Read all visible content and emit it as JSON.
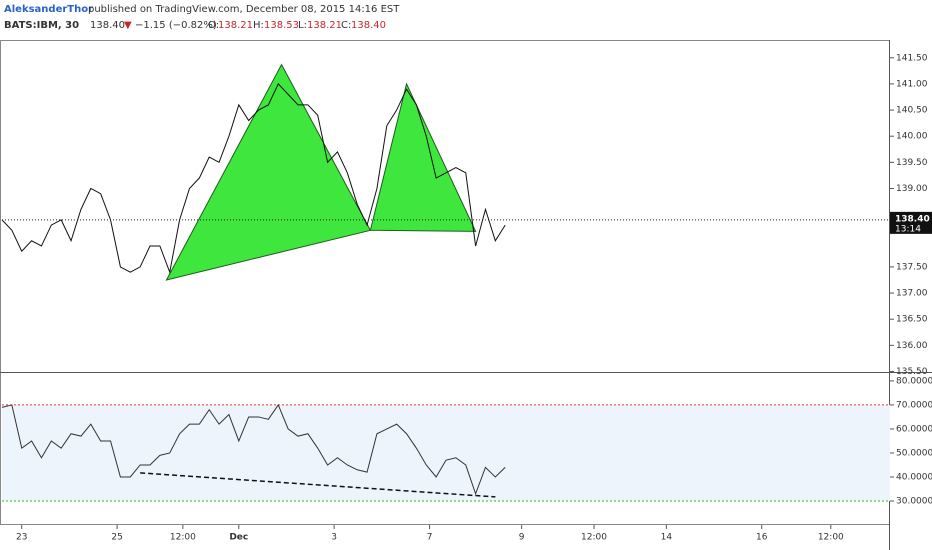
{
  "header": {
    "author": "AleksanderThor",
    "published": "published on TradingView.com, December 08, 2015 14:16 EST",
    "symbol": "BATS:IBM, 30",
    "last": "138.40",
    "change_arrow": "▼",
    "change": "−1.15 (−0.82%)",
    "o_label": "O:",
    "o": "138.21",
    "h_label": "H:",
    "h": "138.53",
    "l_label": "L:",
    "l": "138.21",
    "c_label": "C:",
    "c": "138.40"
  },
  "chart_data": [
    {
      "type": "line",
      "color": "#111111",
      "x": [
        0,
        3,
        6,
        9,
        12,
        15,
        18,
        21,
        24,
        27,
        30,
        33,
        36,
        39,
        42,
        45,
        48,
        51,
        54,
        57,
        60,
        63,
        66,
        69,
        72,
        75,
        78,
        81,
        84,
        87,
        90,
        93,
        96,
        99,
        102,
        105,
        108,
        111,
        114,
        117,
        120,
        123,
        126,
        129,
        132,
        135,
        138,
        141,
        144,
        147,
        150,
        153
      ],
      "values": [
        138.4,
        138.2,
        137.8,
        138.0,
        137.9,
        138.3,
        138.4,
        138.0,
        138.6,
        139.0,
        138.9,
        138.4,
        137.5,
        137.4,
        137.5,
        137.9,
        137.9,
        137.4,
        138.4,
        139.0,
        139.2,
        139.6,
        139.5,
        140.0,
        140.6,
        140.3,
        140.5,
        140.6,
        141.0,
        140.8,
        140.6,
        140.6,
        140.4,
        139.5,
        139.7,
        139.3,
        138.7,
        138.3,
        139.0,
        140.2,
        140.5,
        140.9,
        140.6,
        140.0,
        139.2,
        139.3,
        139.4,
        139.3,
        137.9,
        138.6,
        138.0,
        138.3
      ],
      "patterns": [
        {
          "x": [
            50,
            85,
            112
          ],
          "y": [
            137.25,
            141.37,
            138.2
          ],
          "color": "#3ee63e"
        },
        {
          "x": [
            112,
            123,
            144
          ],
          "y": [
            138.2,
            141.0,
            138.18
          ],
          "color": "#3ee63e"
        }
      ],
      "last_price": 138.4,
      "last_label": "138.40",
      "countdown": "13:14",
      "xlim": [
        0,
        270
      ],
      "ylim": [
        135.49,
        141.84
      ],
      "yticks": [
        {
          "value": 135.5,
          "label": "135.50"
        },
        {
          "value": 136,
          "label": "136.00"
        },
        {
          "value": 136.5,
          "label": "136.50"
        },
        {
          "value": 137,
          "label": "137.00"
        },
        {
          "value": 137.5,
          "label": "137.50"
        },
        {
          "value": 139,
          "label": "139.00"
        },
        {
          "value": 139.5,
          "label": "139.50"
        },
        {
          "value": 140,
          "label": "140.00"
        },
        {
          "value": 140.5,
          "label": "140.50"
        },
        {
          "value": 141,
          "label": "141.00"
        },
        {
          "value": 141.5,
          "label": "141.50"
        }
      ]
    },
    {
      "type": "line",
      "color": "#333333",
      "x": [
        0,
        3,
        6,
        9,
        12,
        15,
        18,
        21,
        24,
        27,
        30,
        33,
        36,
        39,
        42,
        45,
        48,
        51,
        54,
        57,
        60,
        63,
        66,
        69,
        72,
        75,
        78,
        81,
        84,
        87,
        90,
        93,
        96,
        99,
        102,
        105,
        108,
        111,
        114,
        117,
        120,
        123,
        126,
        129,
        132,
        135,
        138,
        141,
        144,
        147,
        150,
        153
      ],
      "values": [
        69,
        70,
        52,
        55,
        48,
        55,
        52,
        58,
        57,
        62,
        55,
        55,
        40,
        40,
        45,
        45,
        49,
        50,
        58,
        62,
        62,
        68,
        62,
        66,
        55,
        65,
        65,
        64,
        70,
        60,
        57,
        58,
        52,
        45,
        48,
        45,
        43,
        42,
        58,
        60,
        62,
        58,
        52,
        45,
        40,
        47,
        48,
        45,
        33,
        44,
        40,
        44
      ],
      "upper": 70,
      "lower": 30,
      "upper_color": "#e53935",
      "lower_color": "#22c022",
      "trendline": {
        "x": [
          42,
          150
        ],
        "y": [
          41.7,
          31.7
        ]
      },
      "xlim": [
        0,
        270
      ],
      "ylim": [
        20,
        83.3
      ],
      "yticks": [
        {
          "value": 30,
          "label": "30.0000"
        },
        {
          "value": 40,
          "label": "40.0000"
        },
        {
          "value": 50,
          "label": "50.0000"
        },
        {
          "value": 60,
          "label": "60.0000"
        },
        {
          "value": 70,
          "label": "70.0000"
        },
        {
          "value": 80,
          "label": "80.0000"
        }
      ],
      "xticks": [
        {
          "value": 6,
          "label": "23"
        },
        {
          "value": 35,
          "label": "25"
        },
        {
          "value": 55,
          "label": "12:00"
        },
        {
          "value": 72,
          "label": "Dec"
        },
        {
          "value": 101,
          "label": "3"
        },
        {
          "value": 130,
          "label": "7"
        },
        {
          "value": 158,
          "label": "9"
        },
        {
          "value": 180,
          "label": "12:00"
        },
        {
          "value": 202,
          "label": "14"
        },
        {
          "value": 231,
          "label": "16"
        },
        {
          "value": 252,
          "label": "12:00"
        }
      ]
    }
  ]
}
